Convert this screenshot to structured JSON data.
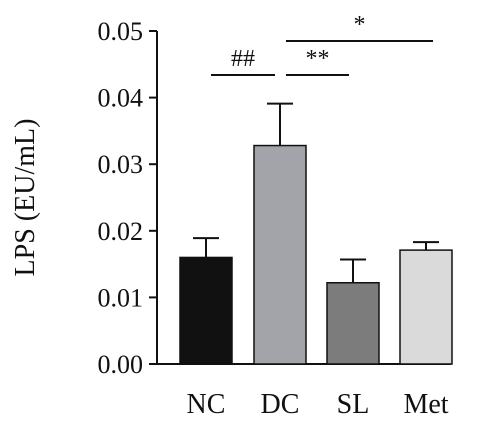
{
  "chart_data": {
    "type": "bar",
    "categories": [
      "NC",
      "DC",
      "SL",
      "Met"
    ],
    "values": [
      0.016,
      0.0328,
      0.0122,
      0.0171
    ],
    "errors": [
      0.0029,
      0.0063,
      0.0035,
      0.0012
    ],
    "colors": [
      "#111111",
      "#a3a4a9",
      "#7b7c7b",
      "#dadada"
    ],
    "ylabel": "LPS (EU/mL)",
    "ylim": [
      0,
      0.05
    ],
    "yticks": [
      "0.00",
      "0.01",
      "0.02",
      "0.03",
      "0.04",
      "0.05"
    ],
    "grid": false,
    "significance": [
      {
        "from": "NC",
        "to": "DC",
        "label": "##"
      },
      {
        "from": "DC",
        "to": "SL",
        "label": "**"
      },
      {
        "from": "DC",
        "to": "Met",
        "label": "*"
      }
    ]
  }
}
